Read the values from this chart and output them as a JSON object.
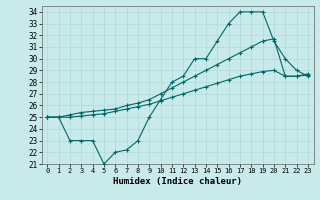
{
  "xlabel": "Humidex (Indice chaleur)",
  "bg_color": "#c8eaea",
  "grid_color": "#b0d8d8",
  "line_color": "#006868",
  "xlim": [
    -0.5,
    23.5
  ],
  "ylim": [
    21,
    34.5
  ],
  "xticks": [
    0,
    1,
    2,
    3,
    4,
    5,
    6,
    7,
    8,
    9,
    10,
    11,
    12,
    13,
    14,
    15,
    16,
    17,
    18,
    19,
    20,
    21,
    22,
    23
  ],
  "yticks": [
    21,
    22,
    23,
    24,
    25,
    26,
    27,
    28,
    29,
    30,
    31,
    32,
    33,
    34
  ],
  "line1_x": [
    0,
    1,
    2,
    3,
    4,
    5,
    6,
    7,
    8,
    9,
    10,
    11,
    12,
    13,
    14,
    15,
    16,
    17,
    18,
    19,
    20,
    21,
    22,
    23
  ],
  "line1_y": [
    25.0,
    25.0,
    25.0,
    25.1,
    25.2,
    25.3,
    25.5,
    25.7,
    25.9,
    26.1,
    26.4,
    26.7,
    27.0,
    27.3,
    27.6,
    27.9,
    28.2,
    28.5,
    28.7,
    28.9,
    29.0,
    28.5,
    28.5,
    28.6
  ],
  "line2_x": [
    0,
    1,
    2,
    3,
    4,
    5,
    6,
    7,
    8,
    9,
    10,
    11,
    12,
    13,
    14,
    15,
    16,
    17,
    18,
    19,
    20,
    21,
    22,
    23
  ],
  "line2_y": [
    25.0,
    25.0,
    23.0,
    23.0,
    23.0,
    21.0,
    22.0,
    22.2,
    23.0,
    25.0,
    26.5,
    28.0,
    28.5,
    30.0,
    30.0,
    31.5,
    33.0,
    34.0,
    34.0,
    34.0,
    31.5,
    30.0,
    29.0,
    28.5
  ],
  "line3_x": [
    0,
    1,
    2,
    3,
    4,
    5,
    6,
    7,
    8,
    9,
    10,
    11,
    12,
    13,
    14,
    15,
    16,
    17,
    18,
    19,
    20,
    21,
    22,
    23
  ],
  "line3_y": [
    25.0,
    25.0,
    25.2,
    25.4,
    25.5,
    25.6,
    25.7,
    26.0,
    26.2,
    26.5,
    27.0,
    27.5,
    28.0,
    28.5,
    29.0,
    29.5,
    30.0,
    30.5,
    31.0,
    31.5,
    31.7,
    28.5,
    28.5,
    28.7
  ]
}
